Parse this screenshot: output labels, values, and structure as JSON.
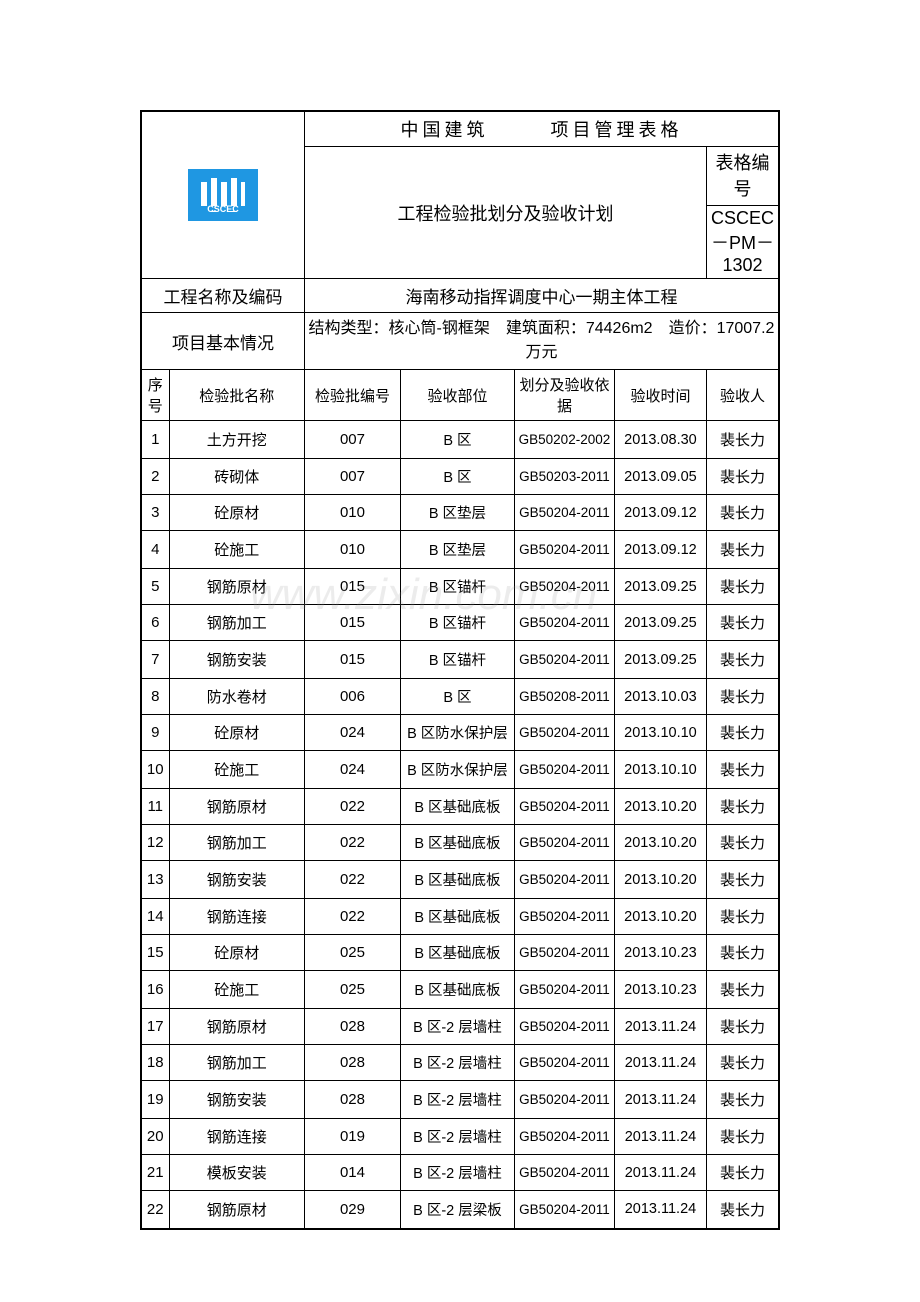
{
  "header": {
    "logo_text": "CSCEC",
    "title_left": "中国建筑",
    "title_right": "项目管理表格",
    "subtitle": "工程检验批划分及验收计划",
    "form_code_label": "表格编号",
    "form_code": "CSCEC－PM－1302"
  },
  "project": {
    "name_label": "工程名称及编码",
    "name_value": "海南移动指挥调度中心一期主体工程",
    "basic_label": "项目基本情况",
    "basic_value": "结构类型：核心筒-钢框架　建筑面积：74426m2　造价：17007.2 万元"
  },
  "columns": {
    "c1": "序号",
    "c2": "检验批名称",
    "c3": "检验批编号",
    "c4": "验收部位",
    "c5": "划分及验收依据",
    "c6": "验收时间",
    "c7": "验收人"
  },
  "rows": [
    {
      "seq": "1",
      "name": "土方开挖",
      "code": "007",
      "part": "B 区",
      "basis": "GB50202-2002",
      "time": "2013.08.30",
      "person": "裴长力"
    },
    {
      "seq": "2",
      "name": "砖砌体",
      "code": "007",
      "part": "B 区",
      "basis": "GB50203-2011",
      "time": "2013.09.05",
      "person": "裴长力"
    },
    {
      "seq": "3",
      "name": "砼原材",
      "code": "010",
      "part": "B 区垫层",
      "basis": "GB50204-2011",
      "time": "2013.09.12",
      "person": "裴长力"
    },
    {
      "seq": "4",
      "name": "砼施工",
      "code": "010",
      "part": "B 区垫层",
      "basis": "GB50204-2011",
      "time": "2013.09.12",
      "person": "裴长力"
    },
    {
      "seq": "5",
      "name": "钢筋原材",
      "code": "015",
      "part": "B 区锚杆",
      "basis": "GB50204-2011",
      "time": "2013.09.25",
      "person": "裴长力"
    },
    {
      "seq": "6",
      "name": "钢筋加工",
      "code": "015",
      "part": "B 区锚杆",
      "basis": "GB50204-2011",
      "time": "2013.09.25",
      "person": "裴长力"
    },
    {
      "seq": "7",
      "name": "钢筋安装",
      "code": "015",
      "part": "B 区锚杆",
      "basis": "GB50204-2011",
      "time": "2013.09.25",
      "person": "裴长力"
    },
    {
      "seq": "8",
      "name": "防水卷材",
      "code": "006",
      "part": "B 区",
      "basis": "GB50208-2011",
      "time": "2013.10.03",
      "person": "裴长力"
    },
    {
      "seq": "9",
      "name": "砼原材",
      "code": "024",
      "part": "B 区防水保护层",
      "basis": "GB50204-2011",
      "time": "2013.10.10",
      "person": "裴长力"
    },
    {
      "seq": "10",
      "name": "砼施工",
      "code": "024",
      "part": "B 区防水保护层",
      "basis": "GB50204-2011",
      "time": "2013.10.10",
      "person": "裴长力"
    },
    {
      "seq": "11",
      "name": "钢筋原材",
      "code": "022",
      "part": "B 区基础底板",
      "basis": "GB50204-2011",
      "time": "2013.10.20",
      "person": "裴长力"
    },
    {
      "seq": "12",
      "name": "钢筋加工",
      "code": "022",
      "part": "B 区基础底板",
      "basis": "GB50204-2011",
      "time": "2013.10.20",
      "person": "裴长力"
    },
    {
      "seq": "13",
      "name": "钢筋安装",
      "code": "022",
      "part": "B 区基础底板",
      "basis": "GB50204-2011",
      "time": "2013.10.20",
      "person": "裴长力"
    },
    {
      "seq": "14",
      "name": "钢筋连接",
      "code": "022",
      "part": "B 区基础底板",
      "basis": "GB50204-2011",
      "time": "2013.10.20",
      "person": "裴长力"
    },
    {
      "seq": "15",
      "name": "砼原材",
      "code": "025",
      "part": "B 区基础底板",
      "basis": "GB50204-2011",
      "time": "2013.10.23",
      "person": "裴长力"
    },
    {
      "seq": "16",
      "name": "砼施工",
      "code": "025",
      "part": "B 区基础底板",
      "basis": "GB50204-2011",
      "time": "2013.10.23",
      "person": "裴长力"
    },
    {
      "seq": "17",
      "name": "钢筋原材",
      "code": "028",
      "part": "B 区-2 层墙柱",
      "basis": "GB50204-2011",
      "time": "2013.11.24",
      "person": "裴长力"
    },
    {
      "seq": "18",
      "name": "钢筋加工",
      "code": "028",
      "part": "B 区-2 层墙柱",
      "basis": "GB50204-2011",
      "time": "2013.11.24",
      "person": "裴长力"
    },
    {
      "seq": "19",
      "name": "钢筋安装",
      "code": "028",
      "part": "B 区-2 层墙柱",
      "basis": "GB50204-2011",
      "time": "2013.11.24",
      "person": "裴长力"
    },
    {
      "seq": "20",
      "name": "钢筋连接",
      "code": "019",
      "part": "B 区-2 层墙柱",
      "basis": "GB50204-2011",
      "time": "2013.11.24",
      "person": "裴长力"
    },
    {
      "seq": "21",
      "name": "模板安装",
      "code": "014",
      "part": "B 区-2 层墙柱",
      "basis": "GB50204-2011",
      "time": "2013.11.24",
      "person": "裴长力"
    },
    {
      "seq": "22",
      "name": "钢筋原材",
      "code": "029",
      "part": "B 区-2 层梁板",
      "basis": "GB50204-2011",
      "time": "2013.11.24",
      "person": "裴长力"
    }
  ],
  "watermark": "www.zixin.com.cn",
  "style": {
    "border_color": "#000000",
    "logo_bg": "#1f97e2",
    "logo_fg": "#ffffff",
    "font_body": 15,
    "font_header": 18
  }
}
